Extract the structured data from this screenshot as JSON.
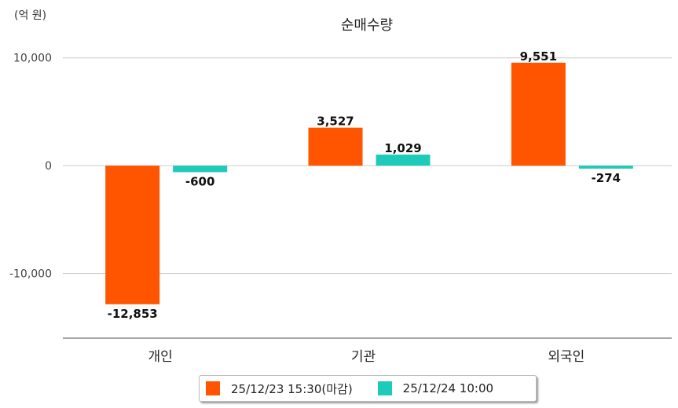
{
  "chart_data": {
    "type": "bar",
    "title": "순매수량",
    "unit_label": "(억 원)",
    "categories": [
      "개인",
      "기관",
      "외국인"
    ],
    "series": [
      {
        "name": "25/12/23 15:30(마감)",
        "color": "#ff5400",
        "values": [
          -12853,
          3527,
          9551
        ],
        "labels": [
          "-12,853",
          "3,527",
          "9,551"
        ]
      },
      {
        "name": "25/12/24 10:00",
        "color": "#1ecbbb",
        "values": [
          -600,
          1029,
          -274
        ],
        "labels": [
          "-600",
          "1,029",
          "-274"
        ]
      }
    ],
    "yticks": [
      10000,
      0,
      -10000
    ],
    "ytick_labels": [
      "10,000",
      "0",
      "-10,000"
    ],
    "ylim": [
      -16000,
      11000
    ],
    "grid": true,
    "legend_position": "bottom"
  }
}
